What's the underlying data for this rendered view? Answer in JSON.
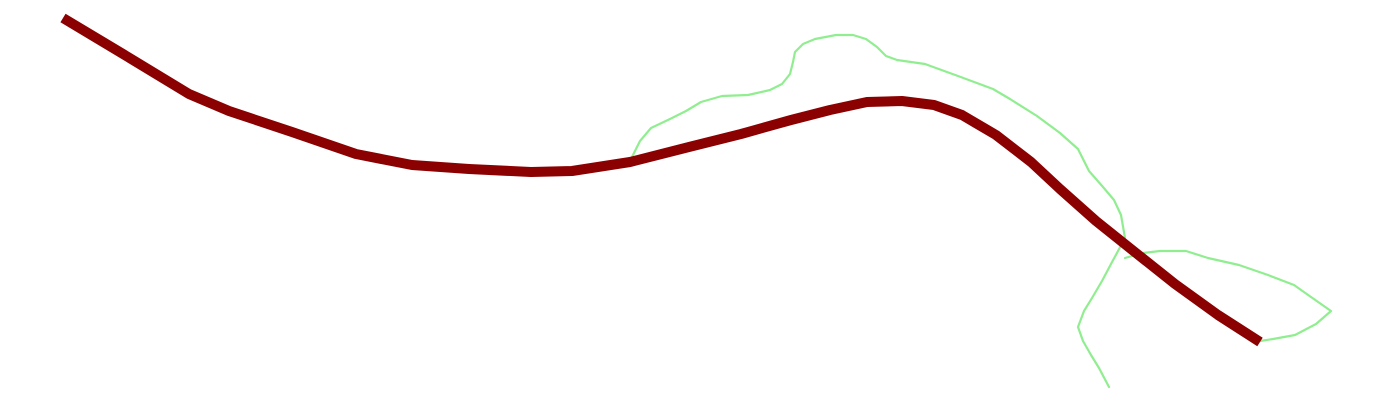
{
  "map": {
    "background_color": "#ffffff",
    "layers": [
      {
        "id": "route",
        "kind": "thick-route-line",
        "color": "#8b0000"
      },
      {
        "id": "path",
        "kind": "thin-path-line",
        "color": "#90ee90"
      }
    ]
  }
}
